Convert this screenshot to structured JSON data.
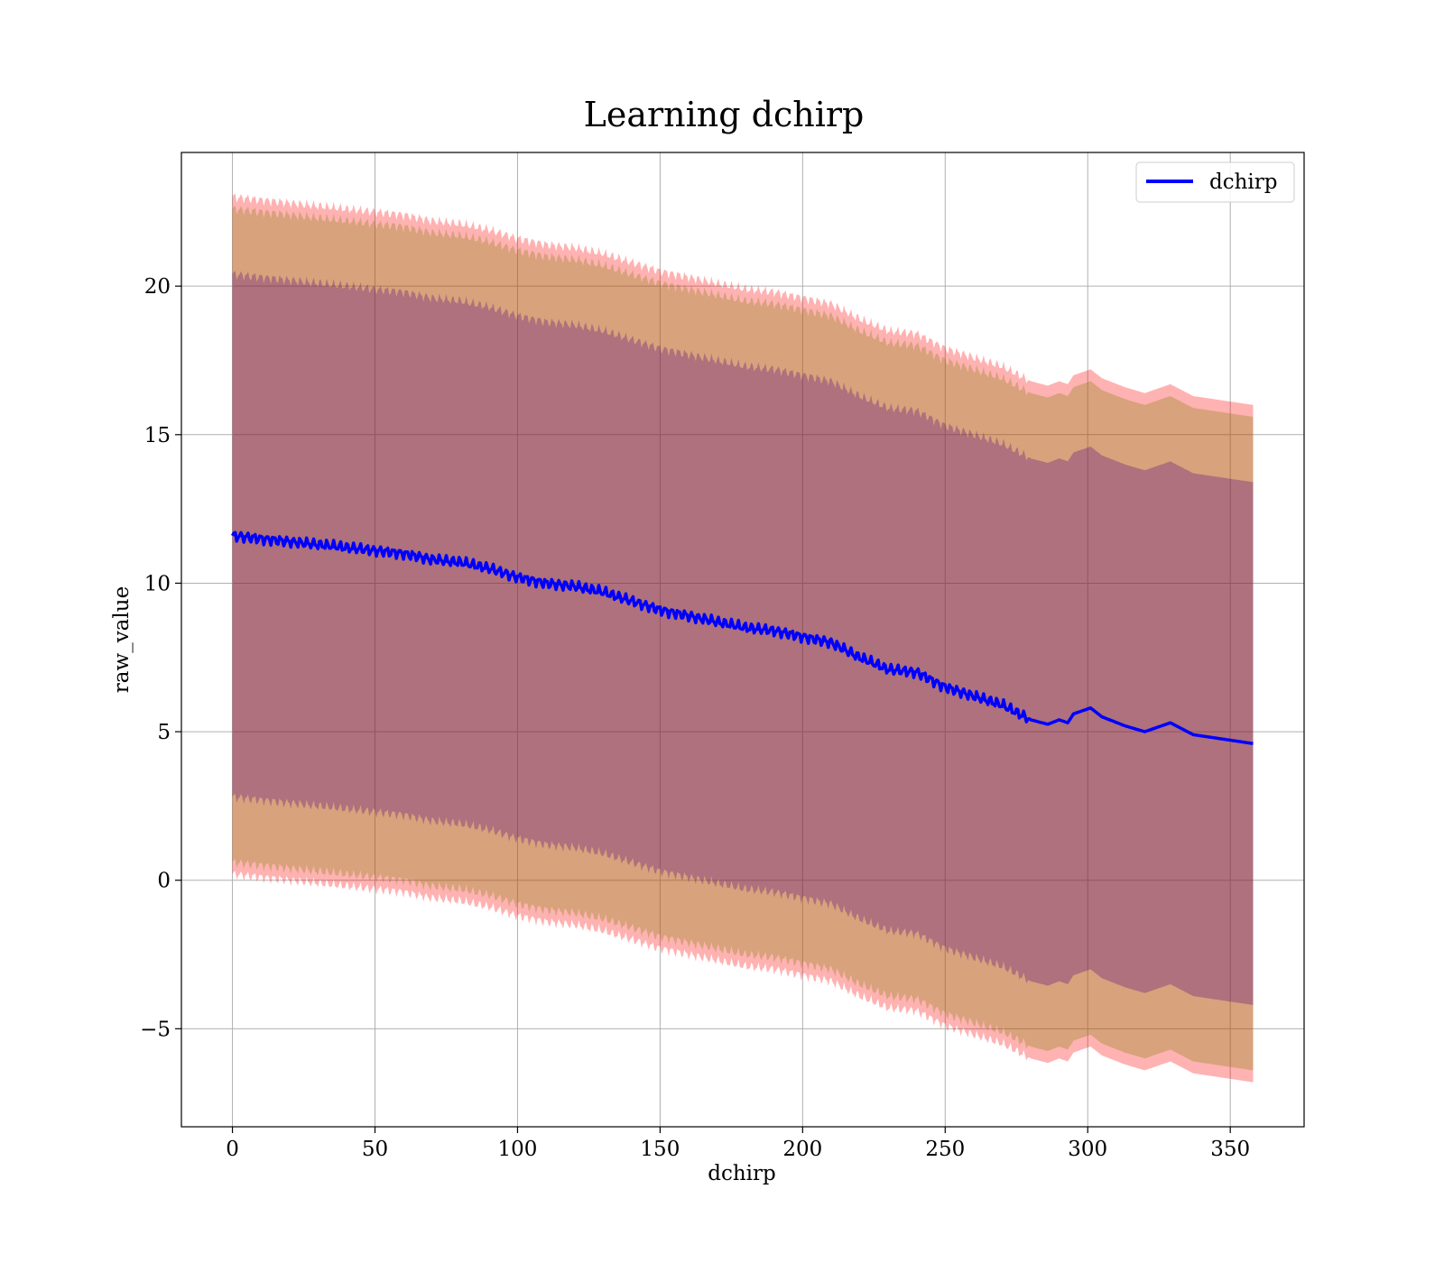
{
  "chart_data": {
    "type": "area",
    "title": "Learning dchirp",
    "xlabel": "dchirp",
    "ylabel": "raw_value",
    "xlim": [
      -17.9,
      375.9
    ],
    "ylim": [
      -8.3,
      24.5
    ],
    "x_ticks": [
      "0",
      "50",
      "100",
      "150",
      "200",
      "250",
      "300",
      "350"
    ],
    "y_ticks": [
      "−5",
      "0",
      "5",
      "10",
      "15",
      "20"
    ],
    "grid": true,
    "legend": {
      "position": "top-right",
      "entries": [
        "dchirp"
      ]
    },
    "colors": {
      "mean_line": "#0000ff",
      "outer_band": "#ff0000",
      "middle_band": "#7f7f00",
      "inner_band": "#4b0082"
    },
    "series": [
      {
        "name": "dchirp",
        "role": "mean line",
        "x": [
          0,
          10,
          20,
          30,
          40,
          50,
          60,
          70,
          80,
          90,
          100,
          110,
          120,
          130,
          140,
          150,
          160,
          170,
          180,
          190,
          200,
          210,
          220,
          230,
          240,
          250,
          260,
          270,
          280,
          286,
          290,
          293,
          295,
          301,
          305,
          313,
          320,
          329,
          337,
          358
        ],
        "y": [
          11.6,
          11.5,
          11.4,
          11.3,
          11.2,
          11.1,
          11.0,
          10.8,
          10.7,
          10.5,
          10.2,
          10.0,
          9.9,
          9.7,
          9.4,
          9.1,
          8.9,
          8.7,
          8.5,
          8.4,
          8.2,
          8.0,
          7.5,
          7.1,
          7.0,
          6.5,
          6.2,
          5.9,
          5.4,
          5.25,
          5.4,
          5.3,
          5.6,
          5.8,
          5.5,
          5.2,
          5.0,
          5.3,
          4.9,
          4.6
        ]
      }
    ],
    "bands": [
      {
        "role": "outer",
        "offsets": [
          11.4,
          -11.4
        ]
      },
      {
        "role": "middle",
        "offsets": [
          11.0,
          -11.0
        ]
      },
      {
        "role": "inner",
        "offsets": [
          8.8,
          -8.8
        ]
      }
    ]
  }
}
